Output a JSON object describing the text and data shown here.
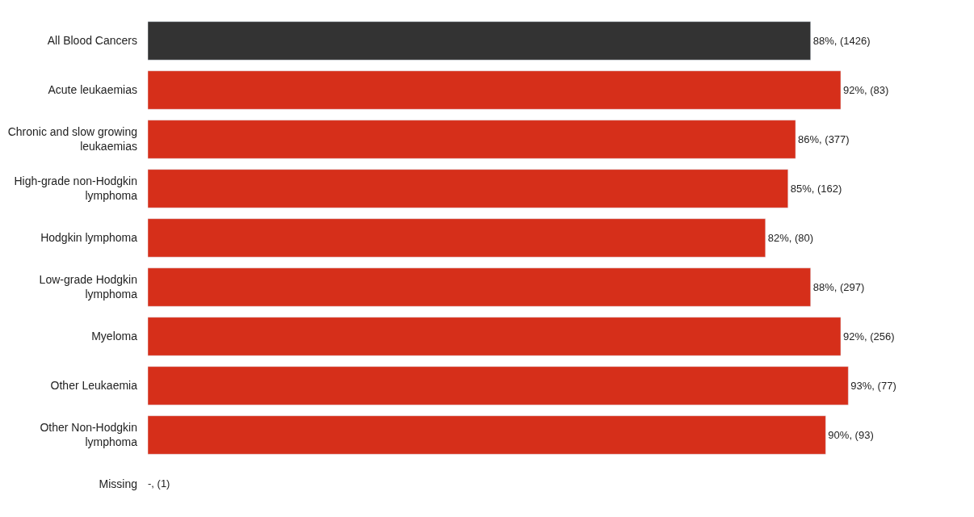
{
  "chart_data": {
    "type": "bar",
    "orientation": "horizontal",
    "categories": [
      "All Blood Cancers",
      "Acute leukaemias",
      "Chronic and slow growing leukaemias",
      "High-grade non-Hodgkin lymphoma",
      "Hodgkin lymphoma",
      "Low-grade Hodgkin lymphoma",
      "Myeloma",
      "Other Leukaemia",
      "Other Non-Hodgkin lymphoma",
      "Missing"
    ],
    "values": [
      88,
      92,
      86,
      85,
      82,
      88,
      92,
      93,
      90,
      null
    ],
    "value_labels": [
      "88%, (1426)",
      "92%, (83)",
      "86%, (377)",
      "85%, (162)",
      "82%, (80)",
      "88%, (297)",
      "92%, (256)",
      "93%, (77)",
      "90%, (93)",
      "-, (1)"
    ],
    "colors": [
      "#333333",
      "#d62f1a",
      "#d62f1a",
      "#d62f1a",
      "#d62f1a",
      "#d62f1a",
      "#d62f1a",
      "#d62f1a",
      "#d62f1a",
      "#d62f1a"
    ]
  }
}
